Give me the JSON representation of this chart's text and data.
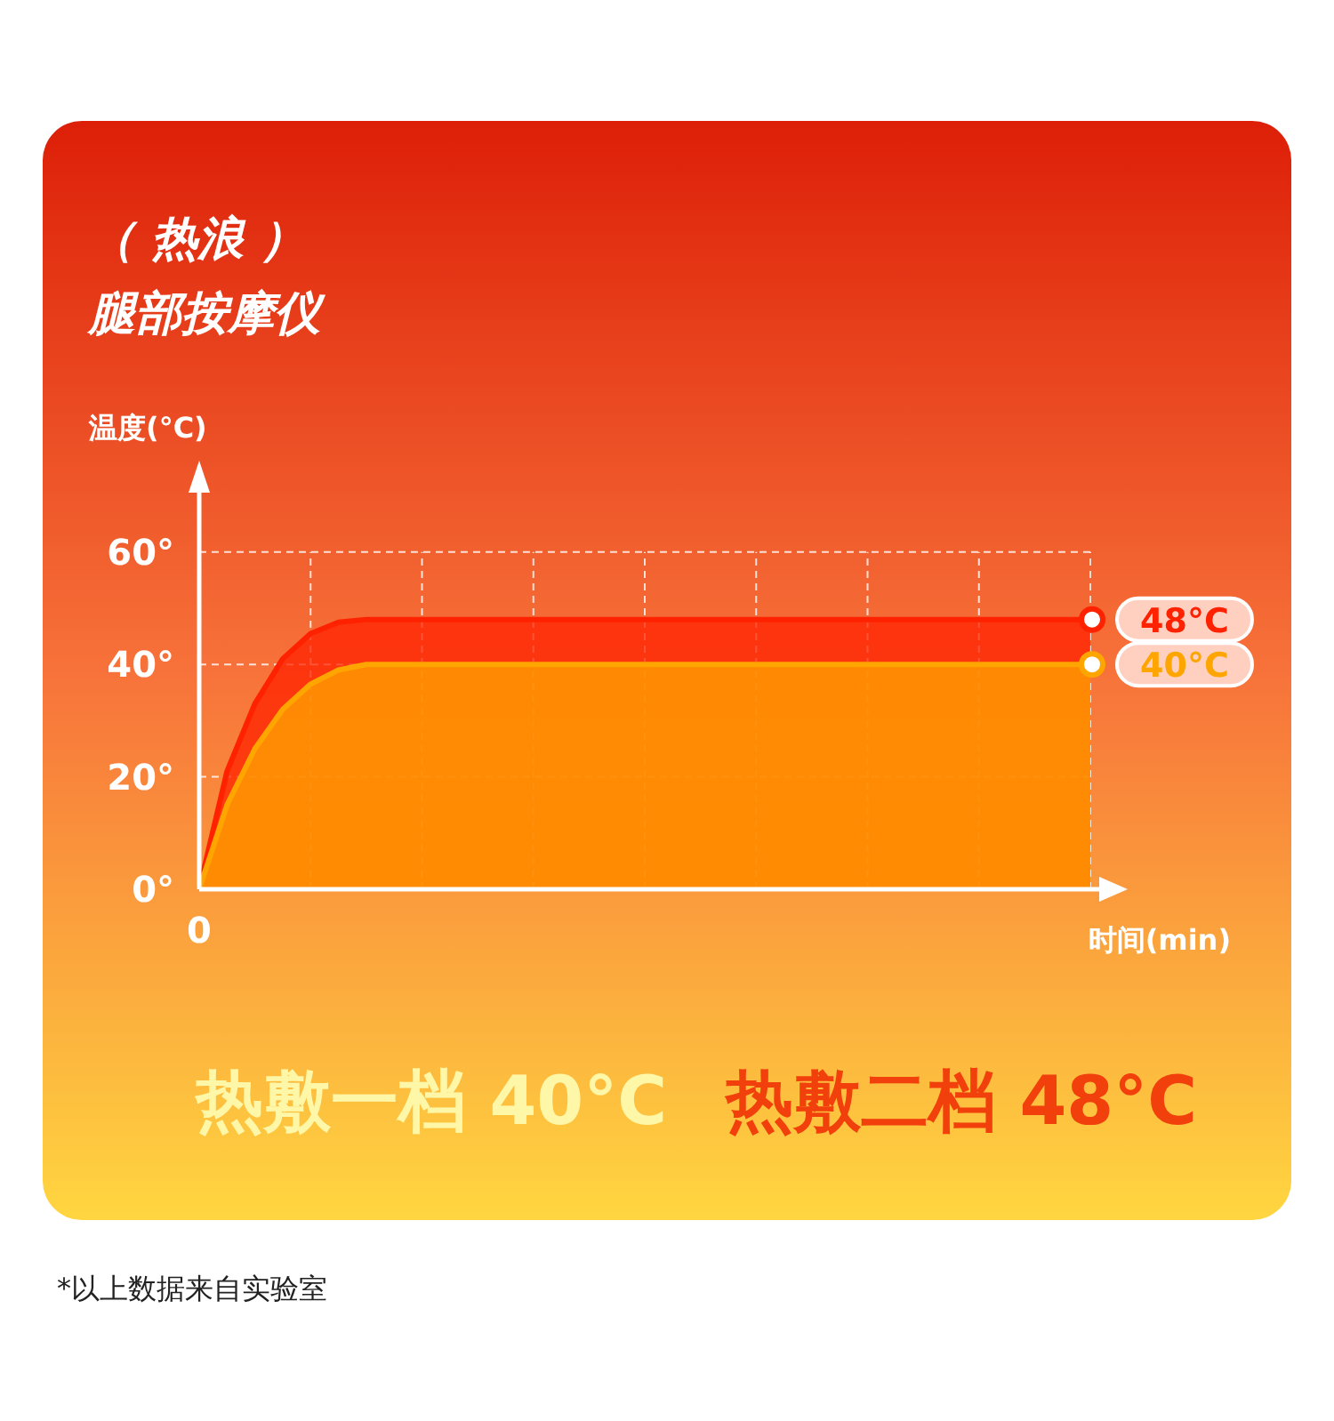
{
  "chart_data": {
    "type": "area",
    "title": "（ 热浪 ）",
    "subtitle": "腿部按摩仪",
    "ylabel": "温度(°C)",
    "xlabel": "时间(min)",
    "categories": [
      "0",
      null,
      null,
      null,
      null,
      null,
      null,
      null,
      null,
      null,
      null,
      null,
      null,
      null,
      null,
      null,
      null,
      null,
      null,
      null,
      null,
      null,
      null,
      null,
      null,
      null,
      null,
      null,
      null,
      null,
      null,
      null,
      null
    ],
    "series": [
      {
        "name": "48°C",
        "color": "#ff2200",
        "values": [
          0,
          21,
          33,
          41,
          45.5,
          47.5,
          48,
          48,
          48,
          48,
          48,
          48,
          48,
          48,
          48,
          48,
          48,
          48,
          48,
          48,
          48,
          48,
          48,
          48,
          48,
          48,
          48,
          48,
          48,
          48,
          48,
          48,
          48
        ]
      },
      {
        "name": "40°C",
        "color": "#ffa500",
        "values": [
          0,
          15,
          25,
          32,
          36.5,
          39,
          40,
          40,
          40,
          40,
          40,
          40,
          40,
          40,
          40,
          40,
          40,
          40,
          40,
          40,
          40,
          40,
          40,
          40,
          40,
          40,
          40,
          40,
          40,
          40,
          40,
          40,
          40
        ]
      }
    ],
    "ylim": [
      0,
      75
    ],
    "yticks": [
      {
        "value": 0,
        "label": "0°"
      },
      {
        "value": 20,
        "label": "20°"
      },
      {
        "value": 40,
        "label": "40°"
      },
      {
        "value": 60,
        "label": "60°"
      }
    ],
    "grid": true,
    "annotations": [
      "热敷一档 40°C",
      "热敷二档 48°C",
      "*以上数据来自实验室"
    ]
  }
}
